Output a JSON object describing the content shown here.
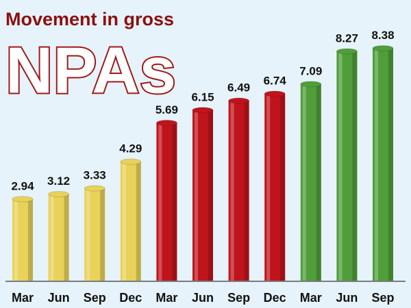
{
  "chart_data": {
    "type": "bar",
    "title": "Movement in gross",
    "subtitle": "NPAs",
    "categories": [
      "Mar",
      "Jun",
      "Sep",
      "Dec",
      "Mar",
      "Jun",
      "Sep",
      "Dec",
      "Mar",
      "Jun",
      "Sep"
    ],
    "values": [
      2.94,
      3.12,
      3.33,
      4.29,
      5.69,
      6.15,
      6.49,
      6.74,
      7.09,
      8.27,
      8.38
    ],
    "colors": [
      "#e8d25a",
      "#e8d25a",
      "#e8d25a",
      "#e8d25a",
      "#c0141c",
      "#c0141c",
      "#c0141c",
      "#c0141c",
      "#4f9e3a",
      "#4f9e3a",
      "#4f9e3a"
    ]
  }
}
